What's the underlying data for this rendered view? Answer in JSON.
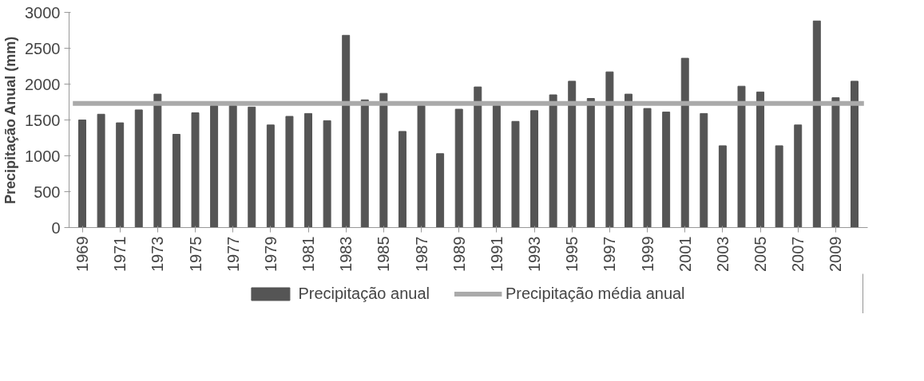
{
  "chart_data": {
    "type": "bar",
    "ylabel": "Precipitação Anual (mm)",
    "categories": [
      "1969",
      null,
      "1971",
      null,
      "1973",
      null,
      "1975",
      null,
      "1977",
      null,
      "1979",
      null,
      "1981",
      null,
      "1983",
      null,
      "1985",
      null,
      "1987",
      null,
      "1989",
      null,
      "1991",
      null,
      "1993",
      null,
      "1995",
      null,
      "1997",
      null,
      "1999",
      null,
      "2001",
      null,
      "2003",
      null,
      "2005",
      null,
      "2007",
      null,
      "2009",
      null
    ],
    "series": [
      {
        "name": "Precipitação anual",
        "color": "#555555",
        "values": [
          1500,
          1580,
          1460,
          1640,
          1860,
          1300,
          1600,
          1700,
          1700,
          1680,
          1430,
          1550,
          1590,
          1490,
          2680,
          1780,
          1870,
          1340,
          1700,
          1030,
          1650,
          1960,
          1700,
          1480,
          1630,
          1850,
          2040,
          1800,
          2170,
          1860,
          1660,
          1610,
          2360,
          1590,
          1140,
          1970,
          1890,
          1140,
          1430,
          2880,
          1810,
          2040
        ]
      }
    ],
    "ref_lines": [
      {
        "axis": "y",
        "value": 1730,
        "label": "Precipitação média anual",
        "color": "#aaaaaa"
      }
    ],
    "ylim": [
      0,
      3000
    ],
    "yticks": [
      0,
      500,
      1000,
      1500,
      2000,
      2500,
      3000
    ],
    "grid": false,
    "legend": "bottom"
  }
}
